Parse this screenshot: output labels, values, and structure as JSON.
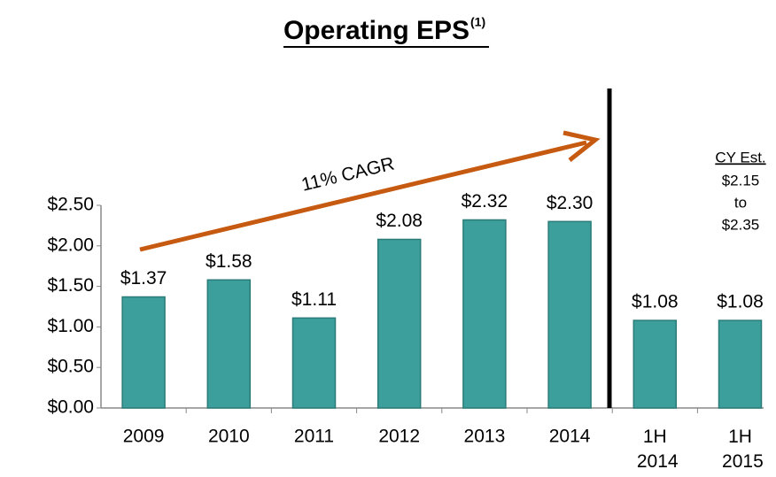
{
  "chart_data": {
    "type": "bar",
    "title": "Operating EPS",
    "title_superscript": "(1)",
    "categories": [
      "2009",
      "2010",
      "2011",
      "2012",
      "2013",
      "2014",
      "1H 2014",
      "1H 2015"
    ],
    "values": [
      1.37,
      1.58,
      1.11,
      2.08,
      2.32,
      2.3,
      1.08,
      1.08
    ],
    "value_labels": [
      "$1.37",
      "$1.58",
      "$1.11",
      "$2.08",
      "$2.32",
      "$2.30",
      "$1.08",
      "$1.08"
    ],
    "color": "#3c9f9b",
    "ylim": [
      0,
      2.5
    ],
    "yticks": [
      {
        "value": 0,
        "label": "$0.00"
      },
      {
        "value": 0.5,
        "label": "$0.50"
      },
      {
        "value": 1,
        "label": "$1.00"
      },
      {
        "value": 1.5,
        "label": "$1.50"
      },
      {
        "value": 2,
        "label": "$2.00"
      },
      {
        "value": 2.5,
        "label": "$2.50"
      }
    ],
    "grid": false,
    "arrow_annotation": "11% CAGR",
    "estimate_annotation": [
      "CY Est.",
      "$2.15",
      "to",
      "$2.35"
    ]
  }
}
